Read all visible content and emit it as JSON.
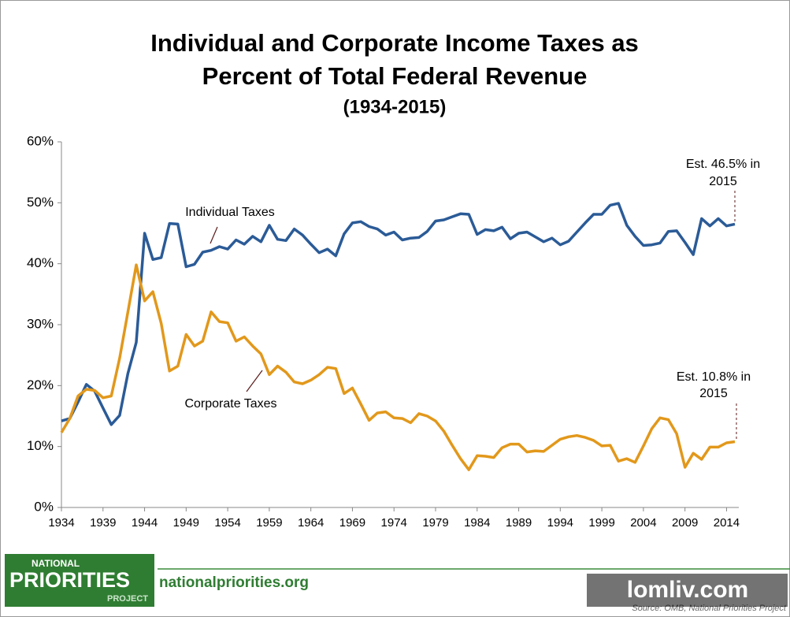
{
  "chart_data": {
    "type": "line",
    "title": [
      "Individual and Corporate Income Taxes as",
      "Percent of Total Federal Revenue"
    ],
    "subtitle": "(1934-2015)",
    "x": [
      1934,
      1935,
      1936,
      1937,
      1938,
      1939,
      1940,
      1941,
      1942,
      1943,
      1944,
      1945,
      1946,
      1947,
      1948,
      1949,
      1950,
      1951,
      1952,
      1953,
      1954,
      1955,
      1956,
      1957,
      1958,
      1959,
      1960,
      1961,
      1962,
      1963,
      1964,
      1965,
      1966,
      1967,
      1968,
      1969,
      1970,
      1971,
      1972,
      1973,
      1974,
      1975,
      1976,
      1977,
      1978,
      1979,
      1980,
      1981,
      1982,
      1983,
      1984,
      1985,
      1986,
      1987,
      1988,
      1989,
      1990,
      1991,
      1992,
      1993,
      1994,
      1995,
      1996,
      1997,
      1998,
      1999,
      2000,
      2001,
      2002,
      2003,
      2004,
      2005,
      2006,
      2007,
      2008,
      2009,
      2010,
      2011,
      2012,
      2013,
      2014,
      2015
    ],
    "series": [
      {
        "name": "Individual Taxes",
        "color": "#2b5b97",
        "values": [
          14.2,
          14.6,
          17.3,
          20.2,
          19.1,
          16.3,
          13.6,
          15.1,
          22.0,
          27.1,
          45.0,
          40.7,
          41.0,
          46.6,
          46.5,
          39.5,
          39.9,
          41.9,
          42.2,
          42.8,
          42.4,
          43.9,
          43.2,
          44.5,
          43.6,
          46.3,
          44.0,
          43.8,
          45.7,
          44.7,
          43.2,
          41.8,
          42.4,
          41.3,
          44.9,
          46.7,
          46.9,
          46.1,
          45.7,
          44.7,
          45.2,
          43.9,
          44.2,
          44.3,
          45.3,
          47.0,
          47.2,
          47.7,
          48.2,
          48.1,
          44.8,
          45.6,
          45.4,
          46.0,
          44.1,
          45.0,
          45.2,
          44.4,
          43.6,
          44.2,
          43.1,
          43.7,
          45.2,
          46.7,
          48.1,
          48.1,
          49.6,
          49.9,
          46.3,
          44.5,
          43.0,
          43.1,
          43.4,
          45.3,
          45.4,
          43.5,
          41.5,
          47.4,
          46.2,
          47.4,
          46.2,
          46.5
        ]
      },
      {
        "name": "Corporate Taxes",
        "color": "#e2981b",
        "values": [
          12.3,
          14.6,
          18.3,
          19.4,
          19.2,
          18.0,
          18.3,
          24.5,
          32.1,
          39.8,
          33.9,
          35.4,
          30.2,
          22.4,
          23.2,
          28.4,
          26.5,
          27.3,
          32.1,
          30.5,
          30.3,
          27.3,
          28.0,
          26.5,
          25.2,
          21.8,
          23.2,
          22.2,
          20.6,
          20.3,
          20.9,
          21.8,
          23.0,
          22.8,
          18.7,
          19.6,
          17.0,
          14.3,
          15.5,
          15.7,
          14.7,
          14.6,
          13.9,
          15.4,
          15.0,
          14.2,
          12.5,
          10.2,
          8.0,
          6.2,
          8.5,
          8.4,
          8.2,
          9.8,
          10.4,
          10.4,
          9.1,
          9.3,
          9.2,
          10.2,
          11.2,
          11.6,
          11.8,
          11.5,
          11.0,
          10.1,
          10.2,
          7.6,
          8.0,
          7.4,
          10.1,
          12.9,
          14.7,
          14.4,
          12.1,
          6.6,
          8.9,
          7.9,
          9.9,
          9.9,
          10.6,
          10.8
        ]
      }
    ],
    "xlim": [
      1934,
      2015
    ],
    "xticks": [
      1934,
      1939,
      1944,
      1949,
      1954,
      1959,
      1964,
      1969,
      1974,
      1979,
      1984,
      1989,
      1994,
      1999,
      2004,
      2009,
      2014
    ],
    "ylim": [
      0,
      60
    ],
    "yticks": [
      {
        "value": 0,
        "label": "0%"
      },
      {
        "value": 10,
        "label": "10%"
      },
      {
        "value": 20,
        "label": "20%"
      },
      {
        "value": 30,
        "label": "30%"
      },
      {
        "value": 40,
        "label": "40%"
      },
      {
        "value": 50,
        "label": "50%"
      },
      {
        "value": 60,
        "label": "60%"
      }
    ],
    "annotations": [
      {
        "text": [
          "Est. 46.5% in",
          "2015"
        ]
      },
      {
        "text": [
          "Est. 10.8% in",
          "2015"
        ]
      }
    ]
  },
  "footer": {
    "logo": [
      "NATIONAL",
      "PRIORITIES",
      "PROJECT"
    ],
    "website": "nationalpriorities.org",
    "source": "Source: OMB, National Priorities Project",
    "watermark": "lomliv.com"
  }
}
